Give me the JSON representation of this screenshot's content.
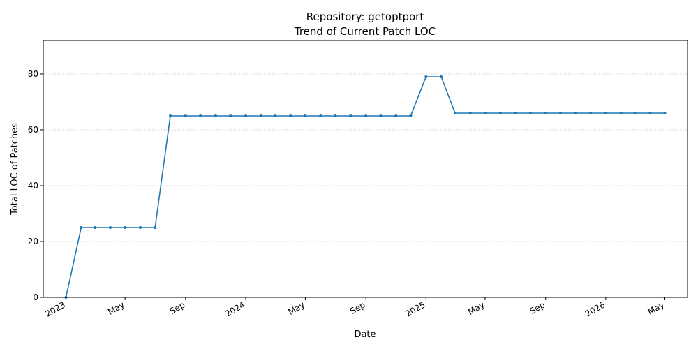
{
  "chart_data": {
    "type": "line",
    "title": "Repository: getoptport",
    "subtitle": "Trend of Current Patch LOC",
    "xlabel": "Date",
    "ylabel": "Total LOC of Patches",
    "ylim": [
      0,
      92
    ],
    "xlim": [
      "2022-11-16",
      "2026-06-16"
    ],
    "grid": "horizontal dashed",
    "yticks": [
      0,
      20,
      40,
      60,
      80
    ],
    "xticks": [
      {
        "date": "2023-01-01",
        "label": "2023"
      },
      {
        "date": "2023-05-01",
        "label": "May"
      },
      {
        "date": "2023-09-01",
        "label": "Sep"
      },
      {
        "date": "2024-01-01",
        "label": "2024"
      },
      {
        "date": "2024-05-01",
        "label": "May"
      },
      {
        "date": "2024-09-01",
        "label": "Sep"
      },
      {
        "date": "2025-01-01",
        "label": "2025"
      },
      {
        "date": "2025-05-01",
        "label": "May"
      },
      {
        "date": "2025-09-01",
        "label": "Sep"
      },
      {
        "date": "2026-01-01",
        "label": "2026"
      },
      {
        "date": "2026-05-01",
        "label": "May"
      }
    ],
    "series": [
      {
        "color": "#1f77b4",
        "x": [
          "2023-01-01",
          "2023-02-01",
          "2023-03-01",
          "2023-04-01",
          "2023-05-01",
          "2023-06-01",
          "2023-07-01",
          "2023-08-01",
          "2023-09-01",
          "2023-10-01",
          "2023-11-01",
          "2023-12-01",
          "2024-01-01",
          "2024-02-01",
          "2024-03-01",
          "2024-04-01",
          "2024-05-01",
          "2024-06-01",
          "2024-07-01",
          "2024-08-01",
          "2024-09-01",
          "2024-10-01",
          "2024-11-01",
          "2024-12-01",
          "2025-01-01",
          "2025-02-01",
          "2025-03-01",
          "2025-04-01",
          "2025-05-01",
          "2025-06-01",
          "2025-07-01",
          "2025-08-01",
          "2025-09-01",
          "2025-10-01",
          "2025-11-01",
          "2025-12-01",
          "2026-01-01",
          "2026-02-01",
          "2026-03-01",
          "2026-04-01",
          "2026-05-01"
        ],
        "y": [
          0,
          25,
          25,
          25,
          25,
          25,
          25,
          65,
          65,
          65,
          65,
          65,
          65,
          65,
          65,
          65,
          65,
          65,
          65,
          65,
          65,
          65,
          65,
          65,
          79,
          79,
          66,
          66,
          66,
          66,
          66,
          66,
          66,
          66,
          66,
          66,
          66,
          66,
          66,
          66,
          66
        ]
      }
    ]
  }
}
